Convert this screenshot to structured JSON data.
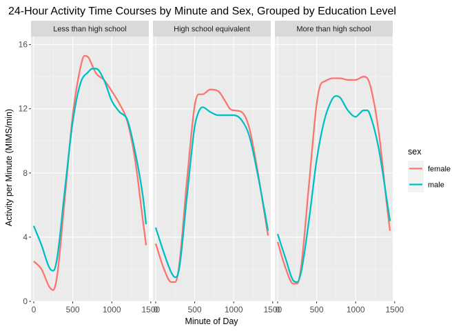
{
  "chart_data": {
    "type": "line",
    "title": "24-Hour Activity Time Courses by Minute and Sex, Grouped by Education Level",
    "xlabel": "Minute of Day",
    "ylabel": "Activity per Minute (MIMS/min)",
    "xlim": [
      -35,
      1475
    ],
    "ylim": [
      0,
      16.5
    ],
    "xticks": [
      0,
      500,
      1000,
      1500
    ],
    "xtick_labels": [
      "0",
      "500",
      "1000",
      "1500"
    ],
    "yticks": [
      0,
      4,
      8,
      12,
      16
    ],
    "ytick_labels": [
      "0",
      "4",
      "8",
      "12",
      "16"
    ],
    "grid": true,
    "legend": {
      "title": "sex",
      "position": "right"
    },
    "series_colors": {
      "female": "#F8766D",
      "male": "#00BFC4"
    },
    "panels": [
      {
        "label": "Less than high school",
        "series": [
          {
            "name": "female",
            "x": [
              0,
              100,
              200,
              250,
              300,
              400,
              500,
              600,
              650,
              700,
              750,
              800,
              900,
              1000,
              1100,
              1200,
              1300,
              1400,
              1440
            ],
            "y": [
              2.5,
              2.0,
              0.9,
              0.7,
              1.6,
              6.5,
              11.6,
              14.6,
              15.3,
              15.2,
              14.7,
              14.2,
              13.8,
              13.1,
              12.3,
              11.2,
              8.8,
              5.0,
              3.5
            ]
          },
          {
            "name": "male",
            "x": [
              0,
              100,
              200,
              250,
              300,
              400,
              500,
              600,
              700,
              750,
              800,
              900,
              1000,
              1100,
              1200,
              1300,
              1400,
              1440
            ],
            "y": [
              4.7,
              3.5,
              2.1,
              1.9,
              2.7,
              7.0,
              11.2,
              13.6,
              14.3,
              14.5,
              14.5,
              13.8,
              12.5,
              11.8,
              11.3,
              9.3,
              6.5,
              4.8
            ]
          }
        ]
      },
      {
        "label": "High school equivalent",
        "series": [
          {
            "name": "female",
            "x": [
              0,
              100,
              200,
              250,
              300,
              400,
              500,
              550,
              600,
              700,
              800,
              900,
              950,
              1000,
              1100,
              1200,
              1300,
              1400,
              1440
            ],
            "y": [
              3.6,
              2.1,
              1.2,
              1.2,
              2.2,
              7.5,
              12.2,
              12.9,
              12.9,
              13.2,
              13.1,
              12.4,
              12.0,
              11.9,
              11.8,
              10.8,
              8.3,
              5.3,
              4.1
            ]
          },
          {
            "name": "male",
            "x": [
              0,
              100,
              200,
              250,
              300,
              400,
              500,
              550,
              600,
              700,
              800,
              900,
              1000,
              1100,
              1200,
              1300,
              1400,
              1440
            ],
            "y": [
              4.6,
              3.1,
              1.8,
              1.5,
              2.0,
              6.5,
              10.9,
              11.8,
              12.1,
              11.8,
              11.6,
              11.6,
              11.6,
              11.3,
              10.3,
              8.1,
              5.5,
              4.4
            ]
          }
        ]
      },
      {
        "label": "More than high school",
        "series": [
          {
            "name": "female",
            "x": [
              0,
              100,
              200,
              250,
              300,
              400,
              500,
              550,
              600,
              700,
              800,
              900,
              1000,
              1100,
              1150,
              1200,
              1300,
              1400,
              1440
            ],
            "y": [
              3.7,
              2.1,
              1.1,
              1.1,
              2.1,
              7.2,
              12.3,
              13.5,
              13.7,
              13.9,
              13.9,
              13.8,
              13.8,
              14.0,
              13.9,
              13.2,
              10.4,
              6.0,
              4.4
            ]
          },
          {
            "name": "male",
            "x": [
              0,
              100,
              200,
              250,
              300,
              400,
              500,
              600,
              700,
              750,
              800,
              900,
              1000,
              1050,
              1100,
              1150,
              1200,
              1300,
              1400,
              1440
            ],
            "y": [
              4.2,
              2.7,
              1.3,
              1.2,
              1.8,
              5.0,
              8.8,
              11.3,
              12.6,
              12.8,
              12.7,
              11.9,
              11.5,
              11.7,
              11.9,
              11.9,
              11.4,
              9.4,
              6.3,
              5.0
            ]
          }
        ]
      }
    ]
  }
}
